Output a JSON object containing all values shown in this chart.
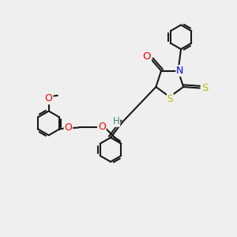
{
  "bg_color": "#efefef",
  "bond_color": "#1a1a1a",
  "bond_lw": 1.5,
  "atom_colors": {
    "O": "#ee0000",
    "N": "#0000ee",
    "S": "#bbbb00",
    "H": "#3a8a8a",
    "C": "#1a1a1a"
  },
  "font_size": 8.5,
  "ring_r": 0.52,
  "five_r": 0.62
}
